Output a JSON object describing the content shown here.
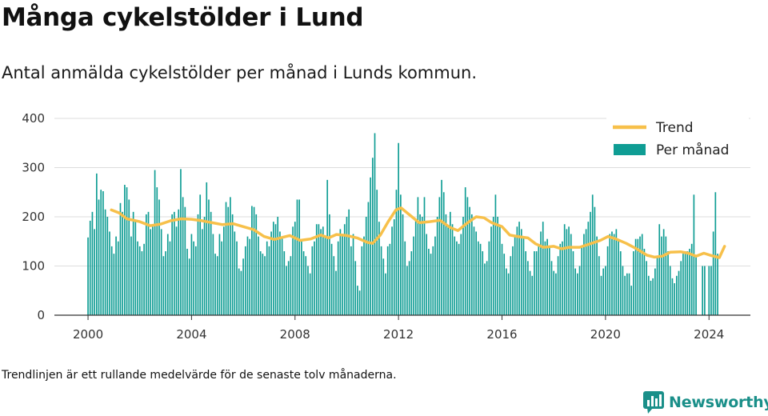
{
  "header": {
    "title": "Många cykelstölder i Lund",
    "subtitle": "Antal anmälda cykelstölder per månad i Lunds kommun."
  },
  "footer": {
    "note": "Trendlinjen är ett rullande medelvärde för de senaste tolv månaderna.",
    "brand": "Newsworthy",
    "brand_icon": "bar-chart-speech-bubble-icon",
    "brand_color": "#1a8f89"
  },
  "chart_data": {
    "type": "bar",
    "x_unit": "year (decimal, monthly bars)",
    "x_start": 2000.0,
    "x_step": 0.0833333,
    "xlim": [
      1998.7,
      2025.6
    ],
    "ylim": [
      0,
      400
    ],
    "x_ticks": [
      "2000",
      "2004",
      "2008",
      "2012",
      "2016",
      "2020",
      "2024"
    ],
    "y_ticks": [
      "0",
      "100",
      "200",
      "300",
      "400"
    ],
    "grid": "horizontal",
    "legend_position": "top-right",
    "colors": {
      "bars": "#0f9d94",
      "trend": "#f7c04a",
      "grid": "#dddddd",
      "axis": "#333333"
    },
    "series": [
      {
        "name": "Per månad",
        "kind": "bar",
        "values": [
          158,
          192,
          210,
          175,
          288,
          235,
          255,
          252,
          215,
          200,
          170,
          140,
          125,
          160,
          150,
          228,
          210,
          265,
          260,
          235,
          160,
          210,
          190,
          150,
          140,
          130,
          145,
          205,
          210,
          175,
          180,
          295,
          260,
          235,
          175,
          120,
          130,
          165,
          150,
          205,
          210,
          180,
          215,
          297,
          240,
          220,
          135,
          115,
          165,
          150,
          140,
          205,
          245,
          175,
          200,
          270,
          235,
          210,
          165,
          125,
          120,
          165,
          150,
          180,
          230,
          220,
          240,
          205,
          170,
          150,
          95,
          90,
          115,
          140,
          160,
          155,
          222,
          220,
          205,
          160,
          130,
          125,
          120,
          150,
          140,
          170,
          190,
          185,
          200,
          170,
          160,
          130,
          100,
          110,
          120,
          180,
          190,
          235,
          235,
          150,
          130,
          120,
          100,
          85,
          140,
          150,
          185,
          185,
          175,
          180,
          160,
          275,
          205,
          145,
          120,
          90,
          150,
          175,
          165,
          185,
          200,
          215,
          140,
          165,
          110,
          60,
          50,
          140,
          160,
          200,
          230,
          280,
          320,
          370,
          255,
          190,
          140,
          115,
          85,
          140,
          145,
          180,
          195,
          255,
          350,
          245,
          205,
          150,
          100,
          110,
          130,
          160,
          195,
          240,
          205,
          200,
          240,
          165,
          135,
          125,
          140,
          160,
          200,
          240,
          275,
          250,
          205,
          180,
          210,
          185,
          160,
          150,
          145,
          165,
          200,
          260,
          240,
          220,
          205,
          180,
          170,
          150,
          145,
          130,
          105,
          110,
          150,
          180,
          200,
          245,
          200,
          180,
          145,
          125,
          95,
          85,
          120,
          140,
          160,
          180,
          190,
          175,
          160,
          130,
          110,
          90,
          80,
          130,
          130,
          140,
          170,
          190,
          150,
          155,
          140,
          110,
          90,
          85,
          120,
          145,
          150,
          185,
          175,
          180,
          165,
          130,
          95,
          85,
          100,
          140,
          165,
          175,
          190,
          210,
          245,
          220,
          160,
          120,
          80,
          95,
          100,
          140,
          165,
          170,
          165,
          175,
          155,
          130,
          100,
          80,
          85,
          85,
          60,
          130,
          155,
          155,
          160,
          165,
          135,
          110,
          80,
          70,
          75,
          95,
          120,
          185,
          160,
          175,
          160,
          130,
          100,
          75,
          65,
          80,
          90,
          110,
          125,
          130,
          130,
          135,
          145,
          245,
          120,
          0,
          0,
          100,
          100,
          0,
          100,
          100,
          170,
          250,
          125
        ]
      },
      {
        "name": "Trend",
        "kind": "line",
        "points": [
          [
            2000.9,
            214
          ],
          [
            2001.2,
            208
          ],
          [
            2001.5,
            196
          ],
          [
            2002.0,
            190
          ],
          [
            2002.4,
            182
          ],
          [
            2002.8,
            185
          ],
          [
            2003.2,
            192
          ],
          [
            2003.6,
            196
          ],
          [
            2004.0,
            195
          ],
          [
            2004.4,
            192
          ],
          [
            2004.8,
            188
          ],
          [
            2005.2,
            184
          ],
          [
            2005.6,
            186
          ],
          [
            2006.0,
            180
          ],
          [
            2006.4,
            174
          ],
          [
            2006.8,
            160
          ],
          [
            2007.2,
            154
          ],
          [
            2007.5,
            158
          ],
          [
            2007.8,
            162
          ],
          [
            2008.2,
            152
          ],
          [
            2008.6,
            155
          ],
          [
            2009.0,
            163
          ],
          [
            2009.3,
            157
          ],
          [
            2009.6,
            164
          ],
          [
            2010.0,
            162
          ],
          [
            2010.4,
            157
          ],
          [
            2010.8,
            148
          ],
          [
            2011.0,
            146
          ],
          [
            2011.3,
            163
          ],
          [
            2011.6,
            190
          ],
          [
            2011.9,
            214
          ],
          [
            2012.1,
            218
          ],
          [
            2012.4,
            205
          ],
          [
            2012.8,
            188
          ],
          [
            2013.2,
            190
          ],
          [
            2013.6,
            193
          ],
          [
            2014.0,
            178
          ],
          [
            2014.3,
            172
          ],
          [
            2014.6,
            185
          ],
          [
            2015.0,
            200
          ],
          [
            2015.3,
            198
          ],
          [
            2015.6,
            188
          ],
          [
            2016.0,
            180
          ],
          [
            2016.3,
            163
          ],
          [
            2016.6,
            160
          ],
          [
            2017.0,
            157
          ],
          [
            2017.3,
            145
          ],
          [
            2017.6,
            138
          ],
          [
            2018.0,
            140
          ],
          [
            2018.3,
            135
          ],
          [
            2018.6,
            138
          ],
          [
            2019.0,
            138
          ],
          [
            2019.4,
            145
          ],
          [
            2019.8,
            152
          ],
          [
            2020.1,
            160
          ],
          [
            2020.4,
            155
          ],
          [
            2020.8,
            146
          ],
          [
            2021.2,
            135
          ],
          [
            2021.6,
            122
          ],
          [
            2021.9,
            118
          ],
          [
            2022.2,
            120
          ],
          [
            2022.5,
            128
          ],
          [
            2022.9,
            129
          ],
          [
            2023.2,
            126
          ],
          [
            2023.5,
            120
          ],
          [
            2023.8,
            126
          ],
          [
            2024.1,
            121
          ],
          [
            2024.4,
            117
          ],
          [
            2024.6,
            140
          ]
        ]
      }
    ]
  }
}
